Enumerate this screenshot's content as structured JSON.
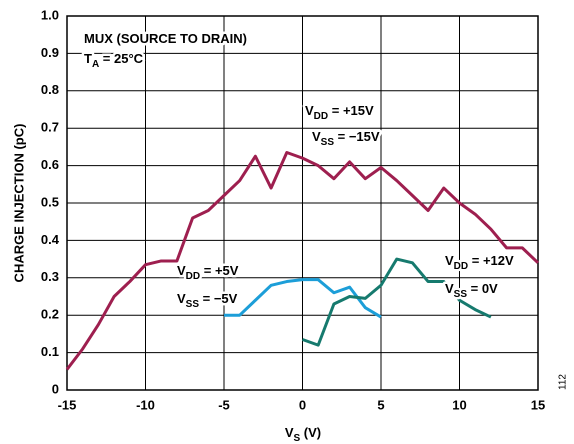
{
  "chart_data": {
    "type": "line",
    "ylabel": "CHARGE INJECTION (pC)",
    "xlabel": {
      "main": "V",
      "sub": "S",
      "rest": " (V)"
    },
    "side_note": "112",
    "xlim": [
      -15,
      15
    ],
    "xticks": [
      -15,
      -10,
      -5,
      0,
      5,
      10,
      15
    ],
    "ylim": [
      0,
      1
    ],
    "yticks": [
      0,
      0.1,
      0.2,
      0.3,
      0.4,
      0.5,
      0.6,
      0.7,
      0.8,
      0.9,
      {
        "value": 1,
        "label": "1.0"
      }
    ],
    "grid": true,
    "annotations": [
      {
        "main": "MUX (SOURCE TO DRAIN)"
      },
      {
        "main": "T",
        "sub": "A",
        "rest": " = 25°C"
      },
      {
        "main": "V",
        "sub": "DD",
        "rest": " = +15V"
      },
      {
        "main": "V",
        "sub": "SS",
        "rest": " = −15V"
      },
      {
        "main": "V",
        "sub": "DD",
        "rest": " = +5V"
      },
      {
        "main": "V",
        "sub": "SS",
        "rest": " = −5V"
      },
      {
        "main": "V",
        "sub": "DD",
        "rest": " = +12V"
      },
      {
        "main": "V",
        "sub": "SS",
        "rest": " = 0V"
      }
    ],
    "series": [
      {
        "color": "#9e1f4f",
        "x": [
          -15,
          -14,
          -13,
          -12,
          -11,
          -10,
          -9,
          -8,
          -7,
          -6,
          -5,
          -4,
          -3,
          -2,
          -1,
          0,
          1,
          2,
          3,
          4,
          5,
          6,
          7,
          8,
          9,
          10,
          11,
          12,
          13,
          14,
          15
        ],
        "values": [
          0.055,
          0.11,
          0.175,
          0.25,
          0.29,
          0.335,
          0.345,
          0.345,
          0.46,
          0.48,
          0.52,
          0.56,
          0.625,
          0.54,
          0.635,
          0.62,
          0.6,
          0.565,
          0.61,
          0.565,
          0.595,
          0.56,
          0.52,
          0.48,
          0.54,
          0.5,
          0.47,
          0.43,
          0.38,
          0.38,
          0.34
        ]
      },
      {
        "color": "#1c9ed8",
        "x": [
          -5,
          -4,
          -3,
          -2,
          -1,
          0,
          1,
          2,
          3,
          4,
          5
        ],
        "values": [
          0.2,
          0.2,
          0.24,
          0.28,
          0.29,
          0.295,
          0.295,
          0.26,
          0.275,
          0.22,
          0.195
        ]
      },
      {
        "color": "#167a6e",
        "x": [
          0,
          1,
          2,
          3,
          4,
          5,
          6,
          7,
          8,
          9,
          10,
          11,
          12
        ],
        "values": [
          0.135,
          0.12,
          0.23,
          0.25,
          0.245,
          0.28,
          0.35,
          0.34,
          0.29,
          0.29,
          0.24,
          0.215,
          0.195
        ]
      }
    ]
  }
}
